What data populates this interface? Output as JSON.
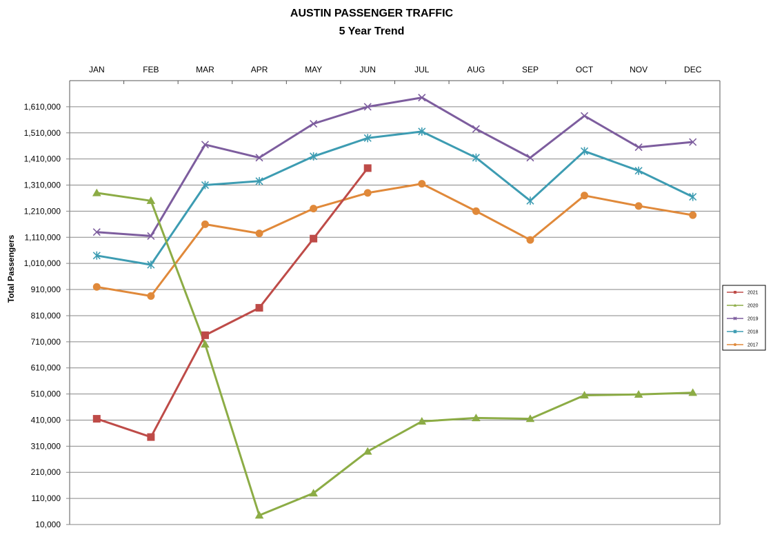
{
  "chart_data": {
    "type": "line",
    "title": "AUSTIN PASSENGER TRAFFIC",
    "subtitle": "5 Year Trend",
    "xlabel": "",
    "ylabel": "Total Passengers",
    "categories": [
      "JAN",
      "FEB",
      "MAR",
      "APR",
      "MAY",
      "JUN",
      "JUL",
      "AUG",
      "SEP",
      "OCT",
      "NOV",
      "DEC"
    ],
    "ylim": [
      10000,
      1710000
    ],
    "yticks": [
      10000,
      110000,
      210000,
      310000,
      410000,
      510000,
      610000,
      710000,
      810000,
      910000,
      1010000,
      1110000,
      1210000,
      1310000,
      1410000,
      1510000,
      1610000
    ],
    "ytick_labels": [
      "10,000",
      "110,000",
      "210,000",
      "310,000",
      "410,000",
      "510,000",
      "610,000",
      "710,000",
      "810,000",
      "910,000",
      "1,010,000",
      "1,110,000",
      "1,210,000",
      "1,310,000",
      "1,410,000",
      "1,510,000",
      "1,610,000"
    ],
    "grid": true,
    "x_axis_position": "top",
    "legend_position": "right",
    "series": [
      {
        "name": "2021",
        "color": "#be4b48",
        "marker": "square",
        "values": [
          415000,
          345000,
          735000,
          840000,
          1105000,
          1375000,
          null,
          null,
          null,
          null,
          null,
          null
        ]
      },
      {
        "name": "2020",
        "color": "#8cac45",
        "marker": "triangle",
        "values": [
          1280000,
          1250000,
          700000,
          45000,
          130000,
          290000,
          405000,
          418000,
          415000,
          505000,
          508000,
          515000
        ]
      },
      {
        "name": "2019",
        "color": "#7d5d9e",
        "marker": "x",
        "values": [
          1130000,
          1115000,
          1465000,
          1415000,
          1545000,
          1610000,
          1645000,
          1525000,
          1415000,
          1575000,
          1455000,
          1475000
        ]
      },
      {
        "name": "2018",
        "color": "#3d9cb2",
        "marker": "star",
        "values": [
          1040000,
          1005000,
          1310000,
          1325000,
          1420000,
          1490000,
          1515000,
          1415000,
          1250000,
          1440000,
          1365000,
          1265000
        ]
      },
      {
        "name": "2017",
        "color": "#e0893a",
        "marker": "circle",
        "values": [
          920000,
          885000,
          1160000,
          1125000,
          1220000,
          1280000,
          1315000,
          1210000,
          1100000,
          1270000,
          1230000,
          1195000
        ]
      }
    ]
  }
}
